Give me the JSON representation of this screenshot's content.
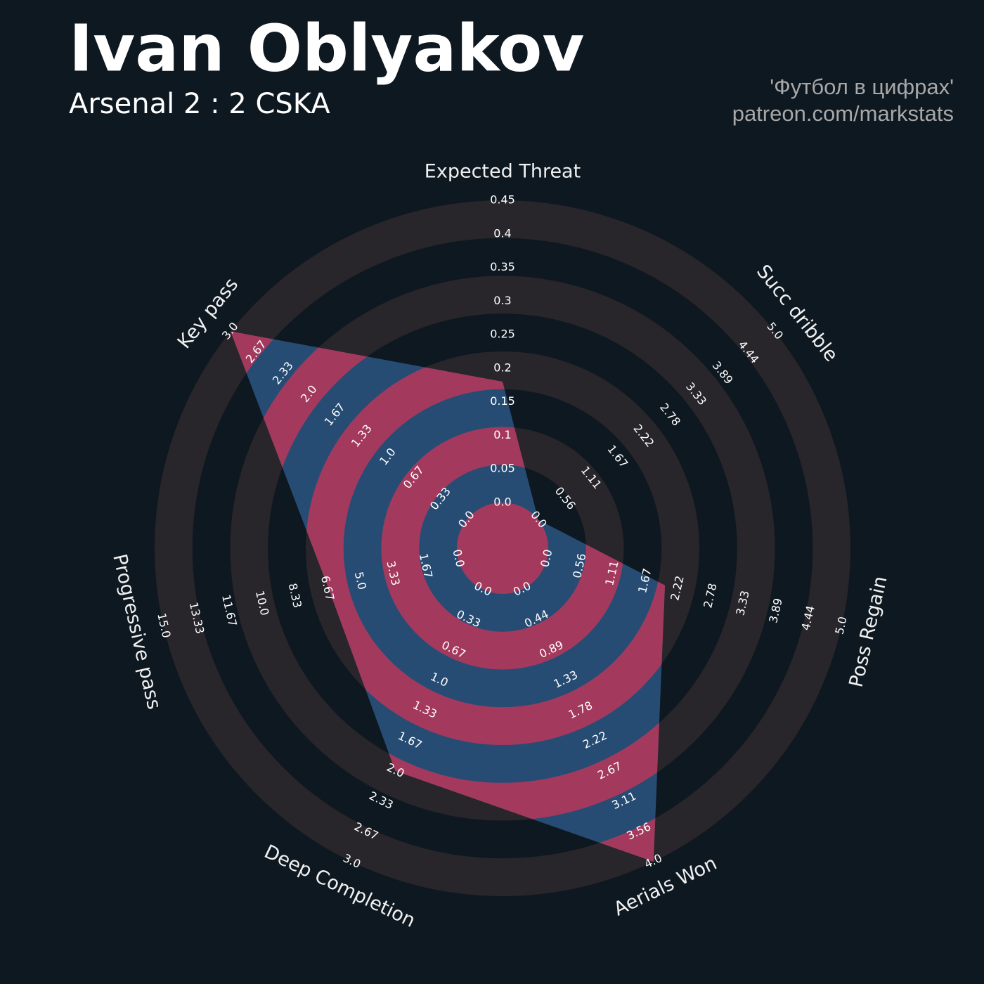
{
  "chart_data": {
    "type": "radar",
    "title": "Ivan Oblyakov",
    "subtitle": "Arsenal 2 : 2 CSKA",
    "credits": [
      "'Футбол в цифрах'",
      "patreon.com/markstats"
    ],
    "categories": [
      "Expected Threat",
      "Succ dribble",
      "Poss Regain",
      "Aerials Won",
      "Deep Completion",
      "Progressive pass",
      "Key pass"
    ],
    "values": [
      0.18,
      0,
      2.0,
      4.0,
      2.0,
      6.6,
      3.0
    ],
    "ranges": [
      [
        0,
        0.45
      ],
      [
        0,
        5
      ],
      [
        0,
        5
      ],
      [
        0,
        4
      ],
      [
        0,
        3
      ],
      [
        0,
        15
      ],
      [
        0,
        3
      ]
    ],
    "ticks": [
      [
        {
          "value": 0,
          "label": "0.0"
        },
        0.05,
        0.1,
        0.15,
        0.2,
        0.25,
        0.3,
        0.35,
        0.4,
        0.45
      ],
      [
        {
          "value": 0,
          "label": "0.0"
        },
        0.56,
        1.11,
        1.67,
        2.22,
        2.78,
        3.33,
        3.89,
        4.44,
        {
          "value": 5,
          "label": "5.0"
        }
      ],
      [
        {
          "value": 0,
          "label": "0.0"
        },
        0.56,
        1.11,
        1.67,
        2.22,
        2.78,
        3.33,
        3.89,
        4.44,
        {
          "value": 5,
          "label": "5.0"
        }
      ],
      [
        {
          "value": 0,
          "label": "0.0"
        },
        0.44,
        0.89,
        1.33,
        1.78,
        2.22,
        2.67,
        3.11,
        3.56,
        {
          "value": 4,
          "label": "4.0"
        }
      ],
      [
        {
          "value": 0,
          "label": "0.0"
        },
        0.33,
        0.67,
        {
          "value": 1,
          "label": "1.0"
        },
        1.33,
        1.67,
        {
          "value": 2,
          "label": "2.0"
        },
        2.33,
        2.67,
        {
          "value": 3,
          "label": "3.0"
        }
      ],
      [
        {
          "value": 0,
          "label": "0.0"
        },
        1.67,
        3.33,
        {
          "value": 5,
          "label": "5.0"
        },
        6.67,
        8.33,
        {
          "value": 10,
          "label": "10.0"
        },
        11.67,
        13.33,
        {
          "value": 15,
          "label": "15.0"
        }
      ],
      [
        {
          "value": 0,
          "label": "0.0"
        },
        0.33,
        0.67,
        {
          "value": 1,
          "label": "1.0"
        },
        1.33,
        1.67,
        {
          "value": 2,
          "label": "2.0"
        },
        2.33,
        2.67,
        {
          "value": 3,
          "label": "3.0"
        }
      ]
    ],
    "color": "#274c74",
    "ring_color": "#28252b",
    "overlap_color": "#a33a5e",
    "background": "#0e1820"
  }
}
